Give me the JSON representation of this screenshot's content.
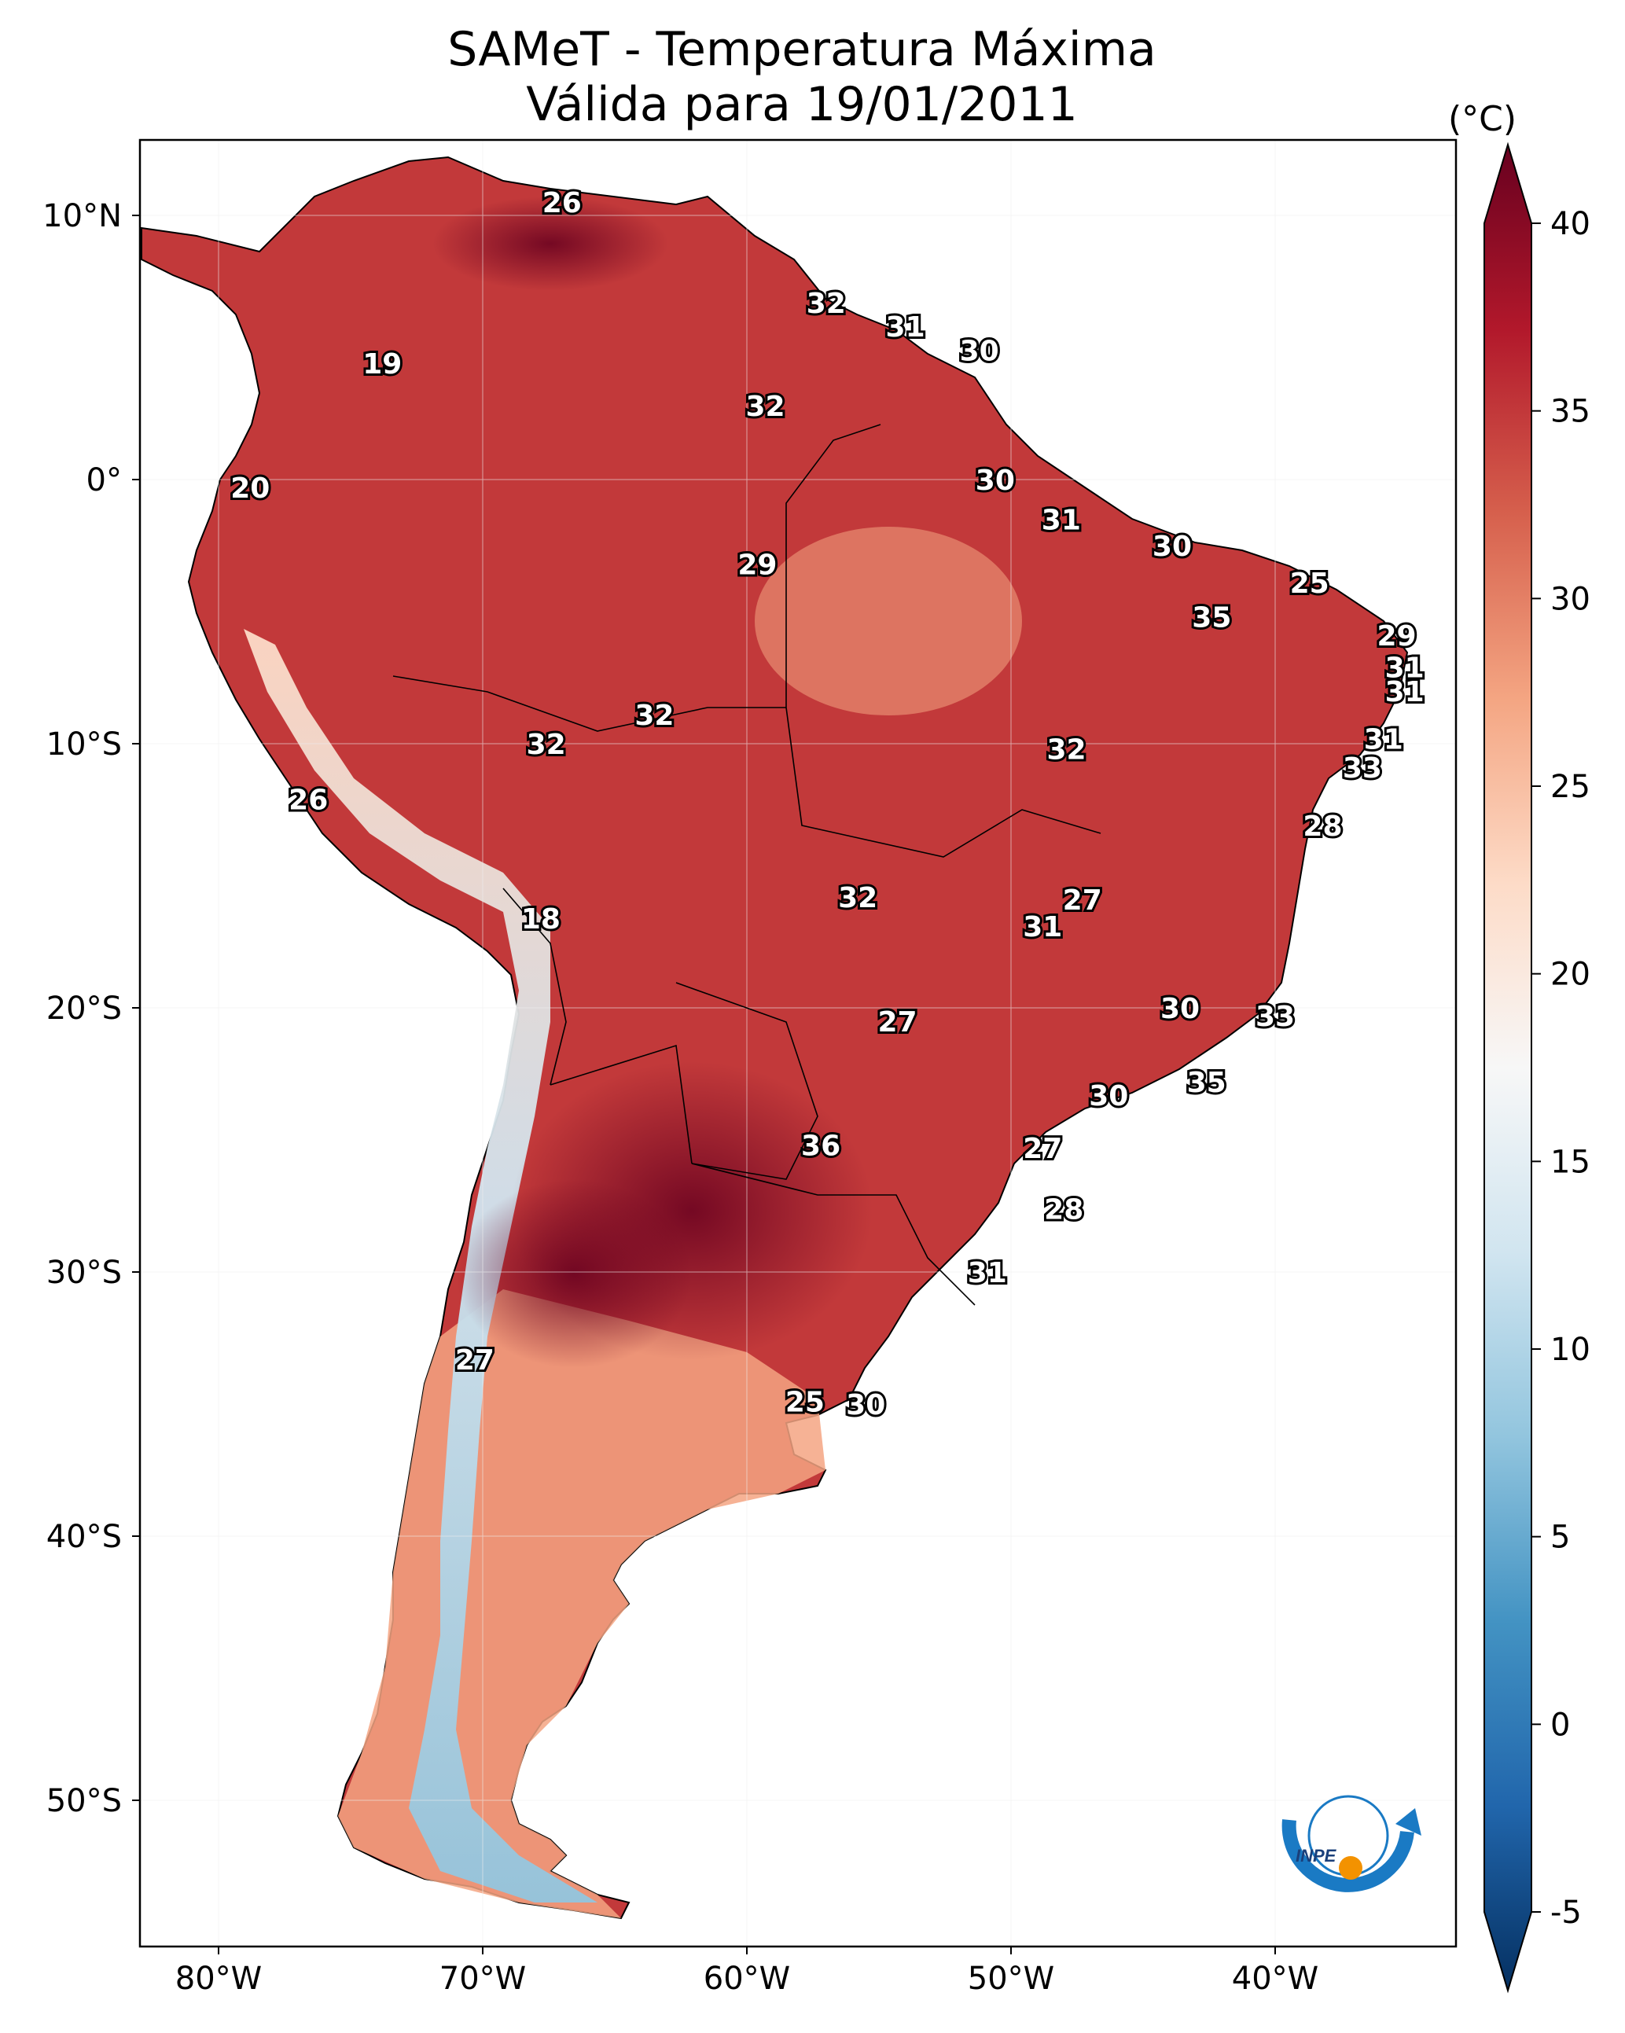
{
  "title": {
    "line1": "SAMeT - Temperatura Máxima",
    "line2": "Válida para 19/01/2011"
  },
  "colorbar": {
    "unit": "(°C)",
    "min": -5,
    "max": 40,
    "ticks": [
      "40",
      "35",
      "30",
      "25",
      "20",
      "15",
      "10",
      "5",
      "0",
      "-5"
    ],
    "colors": [
      "#053061",
      "#2166ac",
      "#4393c3",
      "#92c5de",
      "#d1e5f0",
      "#f7f7f7",
      "#fddbc7",
      "#f4a582",
      "#d6604d",
      "#b2182b",
      "#67001f"
    ]
  },
  "axes": {
    "lat_ticks": [
      "10°N",
      "0°",
      "10°S",
      "20°S",
      "30°S",
      "40°S",
      "50°S"
    ],
    "lon_ticks": [
      "80°W",
      "70°W",
      "60°W",
      "50°W",
      "40°W"
    ]
  },
  "logo": {
    "text": "INPE"
  },
  "temperature_labels": [
    {
      "value": "26",
      "lon": -67.0,
      "lat": 10.5
    },
    {
      "value": "32",
      "lon": -57.0,
      "lat": 6.7
    },
    {
      "value": "31",
      "lon": -54.0,
      "lat": 5.8
    },
    {
      "value": "30",
      "lon": -51.2,
      "lat": 4.9
    },
    {
      "value": "19",
      "lon": -73.8,
      "lat": 4.4
    },
    {
      "value": "32",
      "lon": -59.3,
      "lat": 2.8
    },
    {
      "value": "20",
      "lon": -78.8,
      "lat": -0.3
    },
    {
      "value": "30",
      "lon": -50.6,
      "lat": 0.0
    },
    {
      "value": "31",
      "lon": -48.1,
      "lat": -1.5
    },
    {
      "value": "29",
      "lon": -59.6,
      "lat": -3.2
    },
    {
      "value": "30",
      "lon": -43.9,
      "lat": -2.5
    },
    {
      "value": "25",
      "lon": -38.7,
      "lat": -3.9
    },
    {
      "value": "35",
      "lon": -42.4,
      "lat": -5.2
    },
    {
      "value": "29",
      "lon": -35.4,
      "lat": -5.9
    },
    {
      "value": "31",
      "lon": -35.1,
      "lat": -7.1
    },
    {
      "value": "31",
      "lon": -35.1,
      "lat": -8.0
    },
    {
      "value": "32",
      "lon": -63.5,
      "lat": -8.9
    },
    {
      "value": "32",
      "lon": -67.6,
      "lat": -10.0
    },
    {
      "value": "32",
      "lon": -47.9,
      "lat": -10.2
    },
    {
      "value": "31",
      "lon": -35.9,
      "lat": -9.8
    },
    {
      "value": "33",
      "lon": -36.7,
      "lat": -10.9
    },
    {
      "value": "26",
      "lon": -76.6,
      "lat": -12.1
    },
    {
      "value": "28",
      "lon": -38.2,
      "lat": -13.1
    },
    {
      "value": "32",
      "lon": -55.8,
      "lat": -15.8
    },
    {
      "value": "27",
      "lon": -47.3,
      "lat": -15.9
    },
    {
      "value": "31",
      "lon": -48.8,
      "lat": -16.9
    },
    {
      "value": "18",
      "lon": -67.8,
      "lat": -16.6
    },
    {
      "value": "30",
      "lon": -43.6,
      "lat": -20.0
    },
    {
      "value": "33",
      "lon": -40.0,
      "lat": -20.3
    },
    {
      "value": "27",
      "lon": -54.3,
      "lat": -20.5
    },
    {
      "value": "35",
      "lon": -42.6,
      "lat": -22.8
    },
    {
      "value": "30",
      "lon": -46.3,
      "lat": -23.3
    },
    {
      "value": "36",
      "lon": -57.2,
      "lat": -25.2
    },
    {
      "value": "27",
      "lon": -48.8,
      "lat": -25.3
    },
    {
      "value": "28",
      "lon": -48.0,
      "lat": -27.6
    },
    {
      "value": "31",
      "lon": -50.9,
      "lat": -30.0
    },
    {
      "value": "27",
      "lon": -70.3,
      "lat": -33.3
    },
    {
      "value": "25",
      "lon": -57.8,
      "lat": -34.9
    },
    {
      "value": "30",
      "lon": -55.5,
      "lat": -35.0
    }
  ]
}
